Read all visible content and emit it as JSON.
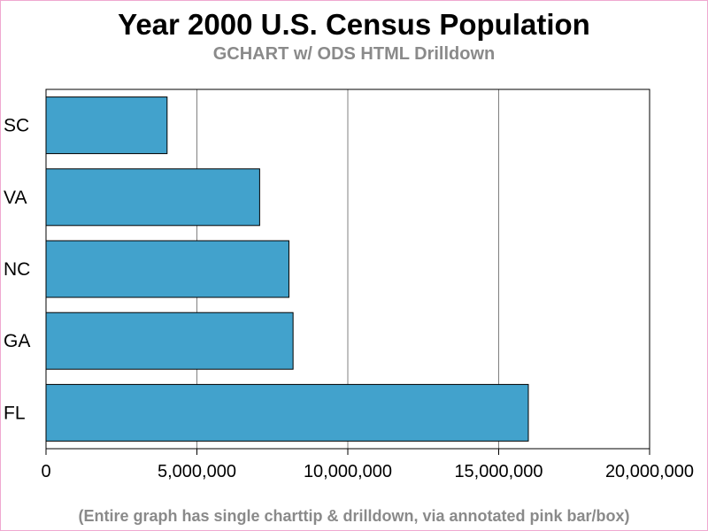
{
  "header": {
    "title": "Year 2000 U.S. Census Population",
    "subtitle": "GCHART w/ ODS HTML Drilldown"
  },
  "footer": {
    "note": "(Entire graph has single charttip & drilldown, via annotated pink bar/box)"
  },
  "colors": {
    "bar": "#42a2cc",
    "frame": "#f0a8d0",
    "subtitle": "#8a8a8a"
  },
  "chart_data": {
    "type": "bar",
    "orientation": "horizontal",
    "title": "Year 2000 U.S. Census Population",
    "subtitle": "GCHART w/ ODS HTML Drilldown",
    "categories": [
      "SC",
      "VA",
      "NC",
      "GA",
      "FL"
    ],
    "values": [
      4012000,
      7079000,
      8049000,
      8186000,
      15982000
    ],
    "xlabel": "",
    "ylabel": "",
    "xlim": [
      0,
      20000000
    ],
    "ticks": [
      0,
      5000000,
      10000000,
      15000000,
      20000000
    ],
    "tick_labels": [
      "0",
      "5,000,000",
      "10,000,000",
      "15,000,000",
      "20,000,000"
    ],
    "grid": "vertical",
    "legend": "none"
  }
}
